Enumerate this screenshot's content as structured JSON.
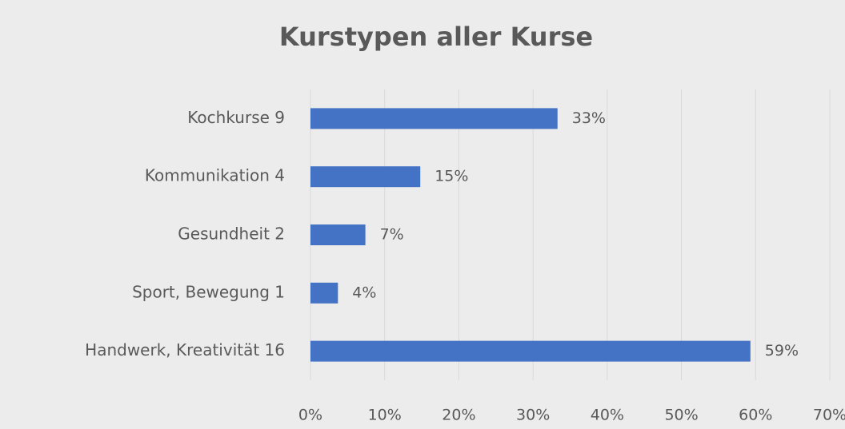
{
  "chart_data": {
    "type": "barh",
    "title": "Kurstypen aller Kurse",
    "categories": [
      "Kochkurse 9",
      "Kommunikation 4",
      "Gesundheit 2",
      "Sport, Bewegung 1",
      "Handwerk, Kreativität 16"
    ],
    "values": [
      33.3,
      14.8,
      7.4,
      3.7,
      59.3
    ],
    "value_labels": [
      "33%",
      "15%",
      "7%",
      "4%",
      "59%"
    ],
    "color": "#4472c4",
    "xlim": [
      0,
      70
    ],
    "xticks": [
      {
        "value": 0,
        "label": "0%"
      },
      {
        "value": 10,
        "label": "10%"
      },
      {
        "value": 20,
        "label": "20%"
      },
      {
        "value": 30,
        "label": "30%"
      },
      {
        "value": 40,
        "label": "40%"
      },
      {
        "value": 50,
        "label": "50%"
      },
      {
        "value": 60,
        "label": "60%"
      },
      {
        "value": 70,
        "label": "70%"
      }
    ],
    "grid": true
  }
}
